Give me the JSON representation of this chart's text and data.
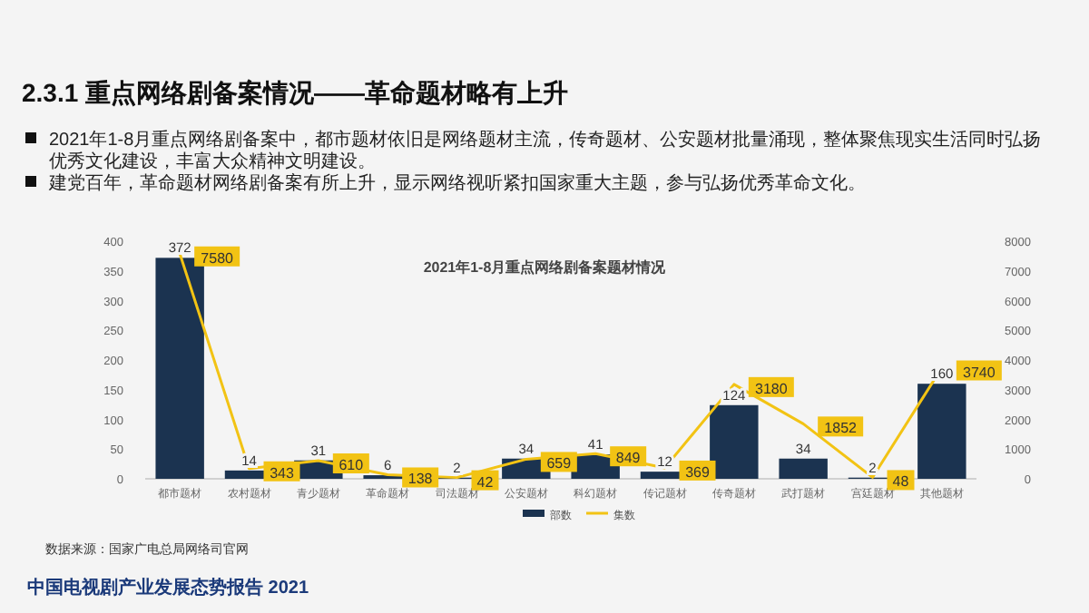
{
  "chart_data": {
    "type": "bar",
    "title": "2.3.1 重点网络剧备案情况——革命题材略有上升",
    "subtitle": "2021年1-8月重点网络剧备案题材情况",
    "annotations": [
      "2021年1-8月重点网络剧备案中，都市题材依旧是网络题材主流，传奇题材、公安题材批量涌现，整体聚焦现实生活同时弘扬优秀文化建设，丰富大众精神文明建设。",
      "建党百年，革命题材网络剧备案有所上升，显示网络视听紧扣国家重大主题，参与弘扬优秀革命文化。",
      "数据来源：国家广电总局网络司官网",
      "中国电视剧产业发展态势报告 2021"
    ],
    "categories": [
      "都市题材",
      "农村题材",
      "青少题材",
      "革命题材",
      "司法题材",
      "公安题材",
      "科幻题材",
      "传记题材",
      "传奇题材",
      "武打题材",
      "宫廷题材",
      "其他题材"
    ],
    "series": [
      {
        "name": "部数",
        "color": "#1b3350",
        "values": [
          372,
          14,
          31,
          6,
          2,
          34,
          41,
          12,
          124,
          34,
          2,
          160
        ]
      },
      {
        "name": "集数",
        "type": "line",
        "axis": "y2",
        "color": "#f2c314",
        "values": [
          7580,
          343,
          610,
          138,
          42,
          659,
          849,
          369,
          3180,
          1852,
          48,
          3740
        ]
      }
    ],
    "data_labels": true,
    "legend": "bottom",
    "ylim": [
      0,
      400
    ],
    "yticks": [
      0,
      50,
      100,
      150,
      200,
      250,
      300,
      350,
      400
    ],
    "y2lim": [
      0,
      8000
    ],
    "y2ticks": [
      0,
      1000,
      2000,
      3000,
      4000,
      5000,
      6000,
      7000,
      8000
    ]
  }
}
